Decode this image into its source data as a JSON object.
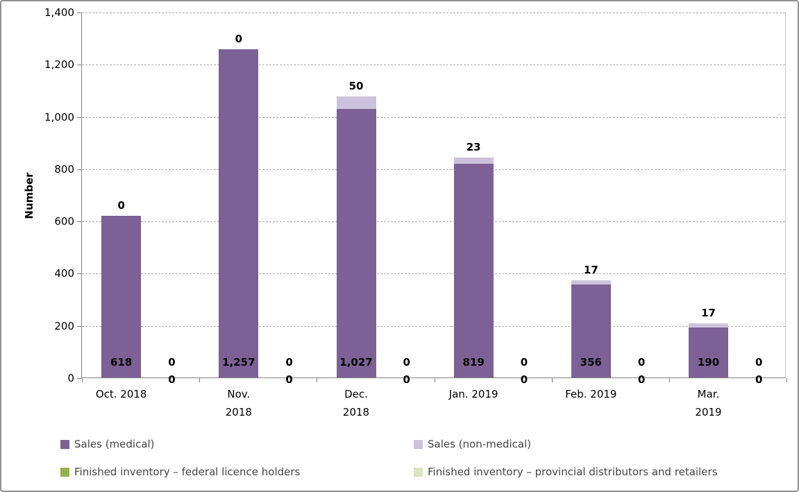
{
  "chart_data": {
    "type": "bar",
    "stacked": true,
    "note_layout": "two stacked columns per category: sales stack (medical + non-medical) and inventory stack (both zero)",
    "title": "",
    "ylabel": "Number",
    "xlabel": "",
    "ylim": [
      0,
      1400
    ],
    "ytick_step": 200,
    "ytick_labels": [
      "0",
      "200",
      "400",
      "600",
      "800",
      "1,000",
      "1,200",
      "1,400"
    ],
    "grid": "horizontal dashed",
    "legend_position": "bottom two-column",
    "categories": [
      "Oct. 2018",
      "Nov.\n2018",
      "Dec.\n2018",
      "Jan. 2019",
      "Feb. 2019",
      "Mar.\n2019"
    ],
    "series": [
      {
        "name": "Sales (medical)",
        "stack": "sales",
        "color": "#7d6096",
        "values": [
          618,
          1257,
          1027,
          819,
          356,
          190
        ],
        "data_labels": [
          "618",
          "1,257",
          "1,027",
          "819",
          "356",
          "190"
        ]
      },
      {
        "name": "Sales (non-medical)",
        "stack": "sales",
        "color": "#ccc2dd",
        "values": [
          0,
          0,
          50,
          23,
          17,
          17
        ],
        "data_labels": [
          "0",
          "0",
          "50",
          "23",
          "17",
          "17"
        ]
      },
      {
        "name": "Finished inventory – federal licence holders",
        "stack": "inventory",
        "color": "#94b24c",
        "values": [
          0,
          0,
          0,
          0,
          0,
          0
        ],
        "data_labels": [
          "0",
          "0",
          "0",
          "0",
          "0",
          "0"
        ]
      },
      {
        "name": "Finished inventory – provincial distributors and retailers",
        "stack": "inventory",
        "color": "#d8e4bc",
        "values": [
          0,
          0,
          0,
          0,
          0,
          0
        ],
        "data_labels": [
          "0",
          "0",
          "0",
          "0",
          "0",
          "0"
        ]
      }
    ]
  }
}
